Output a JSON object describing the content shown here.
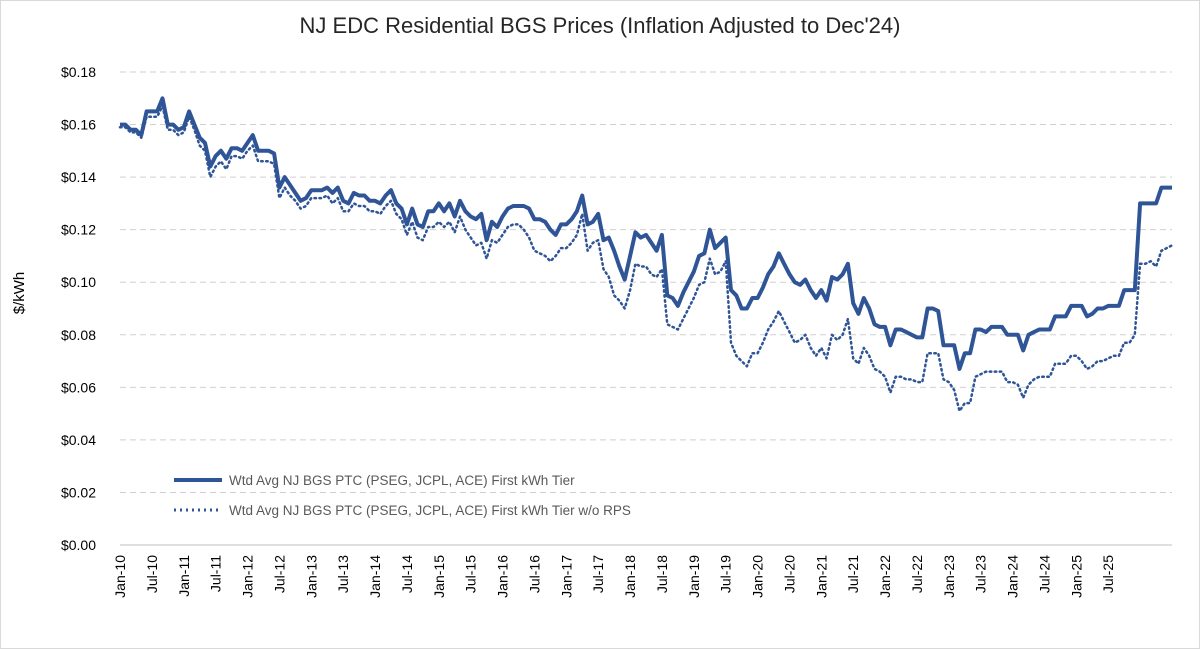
{
  "chart_data": {
    "type": "line",
    "title": "NJ EDC Residential BGS Prices (Inflation Adjusted to Dec'24)",
    "xlabel": "",
    "ylabel": "$/kWh",
    "ylim": [
      0,
      0.18
    ],
    "y_ticks": [
      "$0.00",
      "$0.02",
      "$0.04",
      "$0.06",
      "$0.08",
      "$0.10",
      "$0.12",
      "$0.14",
      "$0.16",
      "$0.18"
    ],
    "x_ticks": [
      "Jan-10",
      "Jul-10",
      "Jan-11",
      "Jul-11",
      "Jan-12",
      "Jul-12",
      "Jan-13",
      "Jul-13",
      "Jan-14",
      "Jul-14",
      "Jan-15",
      "Jul-15",
      "Jan-16",
      "Jul-16",
      "Jan-17",
      "Jul-17",
      "Jan-18",
      "Jul-18",
      "Jan-19",
      "Jul-19",
      "Jan-20",
      "Jul-20",
      "Jan-21",
      "Jul-21",
      "Jan-22",
      "Jul-22",
      "Jan-23",
      "Jul-23",
      "Jan-24",
      "Jul-24",
      "Jan-25",
      "Jul-25"
    ],
    "x_start": "Jan-10",
    "grid": true,
    "legend_position": "bottom-left",
    "series": [
      {
        "name": "Wtd Avg NJ BGS PTC (PSEG, JCPL, ACE) First kWh Tier",
        "style": "solid",
        "color": "#2f5597",
        "values": [
          0.16,
          0.16,
          0.158,
          0.158,
          0.156,
          0.165,
          0.165,
          0.165,
          0.17,
          0.16,
          0.16,
          0.158,
          0.159,
          0.165,
          0.16,
          0.155,
          0.153,
          0.144,
          0.148,
          0.15,
          0.147,
          0.151,
          0.151,
          0.15,
          0.153,
          0.156,
          0.15,
          0.15,
          0.15,
          0.149,
          0.136,
          0.14,
          0.137,
          0.134,
          0.131,
          0.132,
          0.135,
          0.135,
          0.135,
          0.136,
          0.134,
          0.136,
          0.131,
          0.13,
          0.134,
          0.133,
          0.133,
          0.131,
          0.131,
          0.13,
          0.133,
          0.135,
          0.13,
          0.128,
          0.122,
          0.128,
          0.122,
          0.121,
          0.127,
          0.127,
          0.13,
          0.127,
          0.13,
          0.125,
          0.131,
          0.127,
          0.125,
          0.124,
          0.126,
          0.116,
          0.123,
          0.121,
          0.125,
          0.128,
          0.129,
          0.129,
          0.129,
          0.128,
          0.124,
          0.124,
          0.123,
          0.12,
          0.118,
          0.122,
          0.122,
          0.124,
          0.127,
          0.133,
          0.122,
          0.123,
          0.126,
          0.116,
          0.117,
          0.112,
          0.106,
          0.101,
          0.11,
          0.119,
          0.117,
          0.118,
          0.115,
          0.112,
          0.118,
          0.095,
          0.094,
          0.091,
          0.096,
          0.1,
          0.104,
          0.11,
          0.111,
          0.12,
          0.113,
          0.115,
          0.117,
          0.097,
          0.095,
          0.09,
          0.09,
          0.094,
          0.094,
          0.098,
          0.103,
          0.106,
          0.111,
          0.107,
          0.103,
          0.1,
          0.099,
          0.101,
          0.097,
          0.094,
          0.097,
          0.093,
          0.102,
          0.101,
          0.103,
          0.107,
          0.092,
          0.088,
          0.094,
          0.09,
          0.084,
          0.083,
          0.083,
          0.076,
          0.082,
          0.082,
          0.081,
          0.08,
          0.079,
          0.079,
          0.09,
          0.09,
          0.089,
          0.076,
          0.076,
          0.076,
          0.067,
          0.073,
          0.073,
          0.082,
          0.082,
          0.081,
          0.083,
          0.083,
          0.083,
          0.08,
          0.08,
          0.08,
          0.074,
          0.08,
          0.081,
          0.082,
          0.082,
          0.082,
          0.087,
          0.087,
          0.087,
          0.091,
          0.091,
          0.091,
          0.087,
          0.088,
          0.09,
          0.09,
          0.091,
          0.091,
          0.091,
          0.097,
          0.097,
          0.097,
          0.13,
          0.13,
          0.13,
          0.13,
          0.136,
          0.136,
          0.136
        ]
      },
      {
        "name": "Wtd Avg NJ BGS PTC (PSEG, JCPL, ACE) First kWh Tier w/o RPS",
        "style": "dotted",
        "color": "#2f5597",
        "values": [
          0.159,
          0.159,
          0.157,
          0.157,
          0.155,
          0.163,
          0.163,
          0.163,
          0.167,
          0.158,
          0.158,
          0.156,
          0.157,
          0.163,
          0.158,
          0.152,
          0.15,
          0.14,
          0.144,
          0.146,
          0.143,
          0.148,
          0.148,
          0.147,
          0.15,
          0.152,
          0.146,
          0.146,
          0.146,
          0.145,
          0.132,
          0.136,
          0.133,
          0.131,
          0.128,
          0.129,
          0.132,
          0.132,
          0.132,
          0.133,
          0.13,
          0.132,
          0.127,
          0.127,
          0.13,
          0.129,
          0.129,
          0.127,
          0.127,
          0.126,
          0.129,
          0.131,
          0.126,
          0.124,
          0.118,
          0.123,
          0.117,
          0.116,
          0.121,
          0.121,
          0.123,
          0.121,
          0.123,
          0.119,
          0.125,
          0.12,
          0.117,
          0.114,
          0.115,
          0.109,
          0.116,
          0.115,
          0.118,
          0.121,
          0.122,
          0.122,
          0.12,
          0.117,
          0.112,
          0.111,
          0.11,
          0.108,
          0.11,
          0.113,
          0.113,
          0.115,
          0.118,
          0.126,
          0.112,
          0.115,
          0.116,
          0.105,
          0.102,
          0.095,
          0.093,
          0.09,
          0.097,
          0.107,
          0.106,
          0.106,
          0.103,
          0.102,
          0.105,
          0.084,
          0.083,
          0.082,
          0.086,
          0.09,
          0.094,
          0.099,
          0.1,
          0.109,
          0.103,
          0.104,
          0.108,
          0.077,
          0.072,
          0.07,
          0.068,
          0.073,
          0.073,
          0.077,
          0.082,
          0.085,
          0.089,
          0.085,
          0.081,
          0.077,
          0.078,
          0.08,
          0.075,
          0.072,
          0.075,
          0.071,
          0.08,
          0.078,
          0.08,
          0.086,
          0.071,
          0.069,
          0.075,
          0.072,
          0.067,
          0.066,
          0.064,
          0.058,
          0.064,
          0.064,
          0.063,
          0.063,
          0.062,
          0.062,
          0.073,
          0.073,
          0.073,
          0.063,
          0.062,
          0.059,
          0.051,
          0.054,
          0.054,
          0.064,
          0.065,
          0.066,
          0.066,
          0.066,
          0.066,
          0.062,
          0.062,
          0.061,
          0.056,
          0.061,
          0.063,
          0.064,
          0.064,
          0.064,
          0.069,
          0.069,
          0.069,
          0.072,
          0.072,
          0.07,
          0.067,
          0.068,
          0.07,
          0.07,
          0.071,
          0.072,
          0.072,
          0.077,
          0.077,
          0.08,
          0.107,
          0.107,
          0.108,
          0.106,
          0.112,
          0.113,
          0.114
        ]
      }
    ]
  }
}
